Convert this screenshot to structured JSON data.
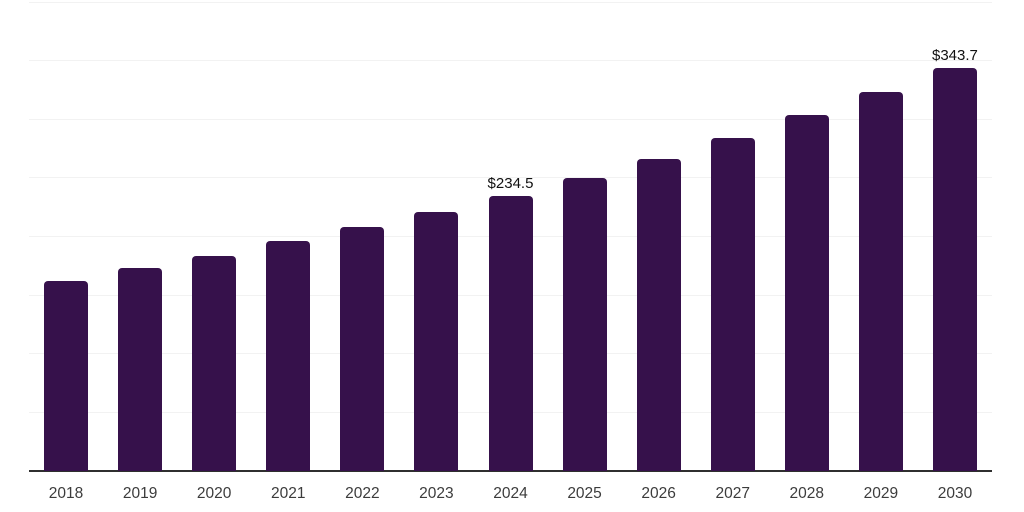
{
  "chart_data": {
    "type": "bar",
    "title": "",
    "xlabel": "",
    "ylabel": "",
    "categories": [
      "2018",
      "2019",
      "2020",
      "2021",
      "2022",
      "2023",
      "2024",
      "2025",
      "2026",
      "2027",
      "2028",
      "2029",
      "2030"
    ],
    "values": [
      162.4,
      172.8,
      183.5,
      195.8,
      207.7,
      220.7,
      234.5,
      250.3,
      265.9,
      284.4,
      303.7,
      323.3,
      343.7
    ],
    "data_labels": [
      {
        "category": "2024",
        "text": "$234.5"
      },
      {
        "category": "2030",
        "text": "$343.7"
      }
    ],
    "ylim": [
      0,
      400
    ],
    "grid_step": 50,
    "grid": true,
    "legend": false,
    "y_tick_labels_visible": false,
    "colors": {
      "bar": "#36114B",
      "grid": "#f2f2f2",
      "axis_line": "#2f2f2f",
      "tick_label": "#3c3c3c",
      "data_label": "#111111",
      "background": "#ffffff"
    }
  }
}
